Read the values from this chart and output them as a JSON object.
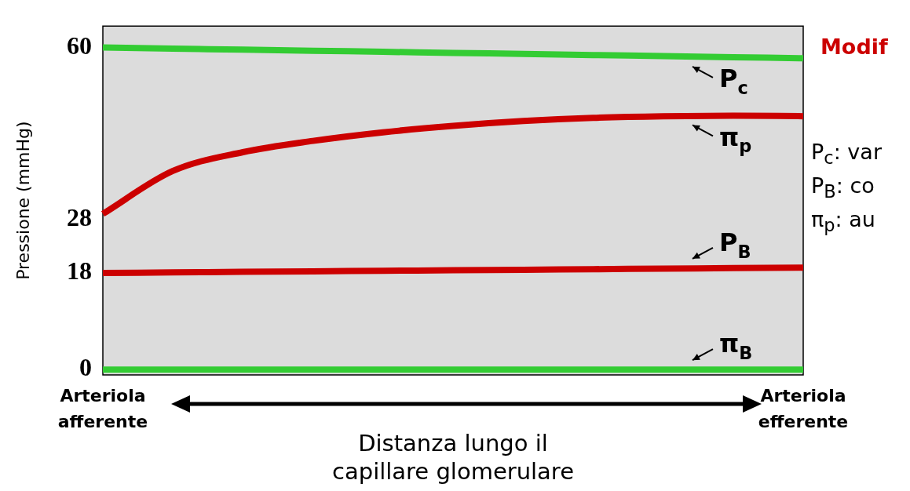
{
  "chart_data": {
    "type": "line",
    "ylabel": "Pressione (mmHg)",
    "xlabel": "Distanza lungo il capillare glomerulare",
    "categories": [
      "Arteriola afferente",
      null,
      null,
      null,
      null,
      null,
      null,
      null,
      null,
      null,
      "Arteriola efferente"
    ],
    "series": [
      {
        "name": "P$_{c}$",
        "color": "#33cc33",
        "values": [
          60,
          59.8,
          59.6,
          59.4,
          59.2,
          59,
          58.8,
          58.6,
          58.4,
          58.2,
          58
        ]
      },
      {
        "name": "π$_{p}$",
        "color": "#cc0000",
        "values": [
          29,
          37,
          40.5,
          42.6,
          44.2,
          45.4,
          46.3,
          46.9,
          47.2,
          47.3,
          47.2
        ]
      },
      {
        "name": "P$_{B}$",
        "color": "#cc0000",
        "values": [
          18,
          18.1,
          18.2,
          18.3,
          18.4,
          18.5,
          18.6,
          18.7,
          18.8,
          18.9,
          19
        ]
      },
      {
        "name": "π$_{B}$",
        "color": "#33cc33",
        "values": [
          0,
          0,
          0,
          0,
          0,
          0,
          0,
          0,
          0,
          0,
          0
        ]
      }
    ],
    "ylim": [
      -1,
      64
    ],
    "yticks": [
      0,
      18,
      28,
      60
    ],
    "grid": false,
    "legend": false,
    "marker": "none",
    "line_style": "solid",
    "annotations": [
      "Modif",
      "P$_{c}$: var",
      "P$_{B}$: co",
      "π$_{p}$: au"
    ]
  }
}
